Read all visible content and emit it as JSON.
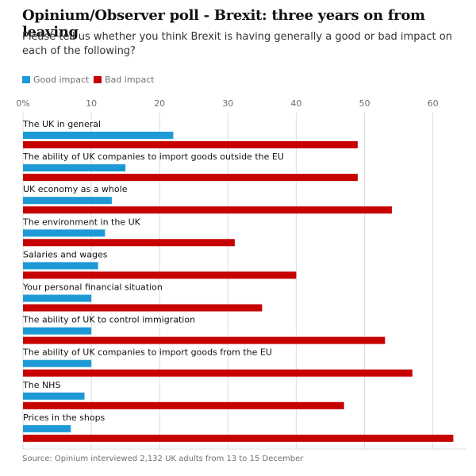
{
  "chart_data": {
    "type": "bar",
    "orientation": "horizontal",
    "title": "Opinium/Observer poll - Brexit: three years on from leaving",
    "subtitle": "Please tell us whether you think Brexit is having generally a good or bad impact on each of the following?",
    "categories": [
      "The UK in general",
      "The ability of UK companies to import goods outside the EU",
      "UK economy as a whole",
      "The environment in the UK",
      "Salaries and wages",
      "Your personal financial situation",
      "The ability of UK to control immigration",
      "The ability of UK companies to import goods from the EU",
      "The NHS",
      "Prices in the shops"
    ],
    "series": [
      {
        "name": "Good impact",
        "color": "#1d9ad6",
        "values": [
          22,
          15,
          13,
          12,
          11,
          10,
          10,
          10,
          9,
          7
        ]
      },
      {
        "name": "Bad impact",
        "color": "#c70000",
        "values": [
          49,
          49,
          54,
          31,
          40,
          35,
          53,
          57,
          47,
          63
        ]
      }
    ],
    "xlim": [
      0,
      63.3
    ],
    "xticks": [
      {
        "value": 0,
        "label": "0%"
      },
      10,
      20,
      30,
      40,
      50,
      60
    ],
    "grid": true,
    "source": "Source: Opinium interviewed 2,132 UK adults from 13 to 15 December"
  }
}
